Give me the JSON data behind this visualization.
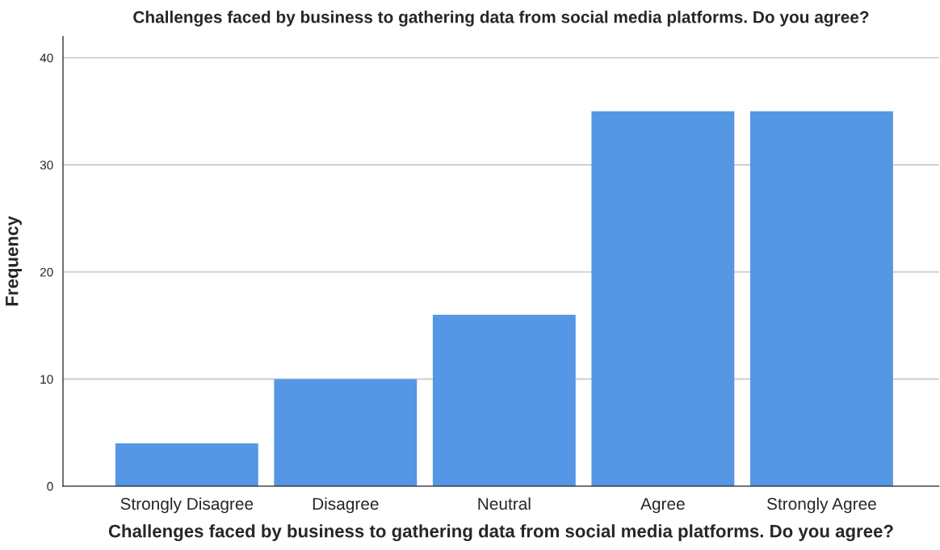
{
  "chart_data": {
    "type": "bar",
    "title": "Challenges faced by business to gathering data from social media platforms. Do you agree?",
    "xlabel": "Challenges faced by business to gathering data from social media platforms. Do you agree?",
    "ylabel": "Frequency",
    "categories": [
      "Strongly Disagree",
      "Disagree",
      "Neutral",
      "Agree",
      "Strongly Agree"
    ],
    "values": [
      4,
      10,
      16,
      35,
      35
    ],
    "color": "#5596e5",
    "ylim": [
      0,
      42
    ],
    "yticks": [
      0,
      10,
      20,
      30,
      40
    ],
    "grid": "y"
  }
}
